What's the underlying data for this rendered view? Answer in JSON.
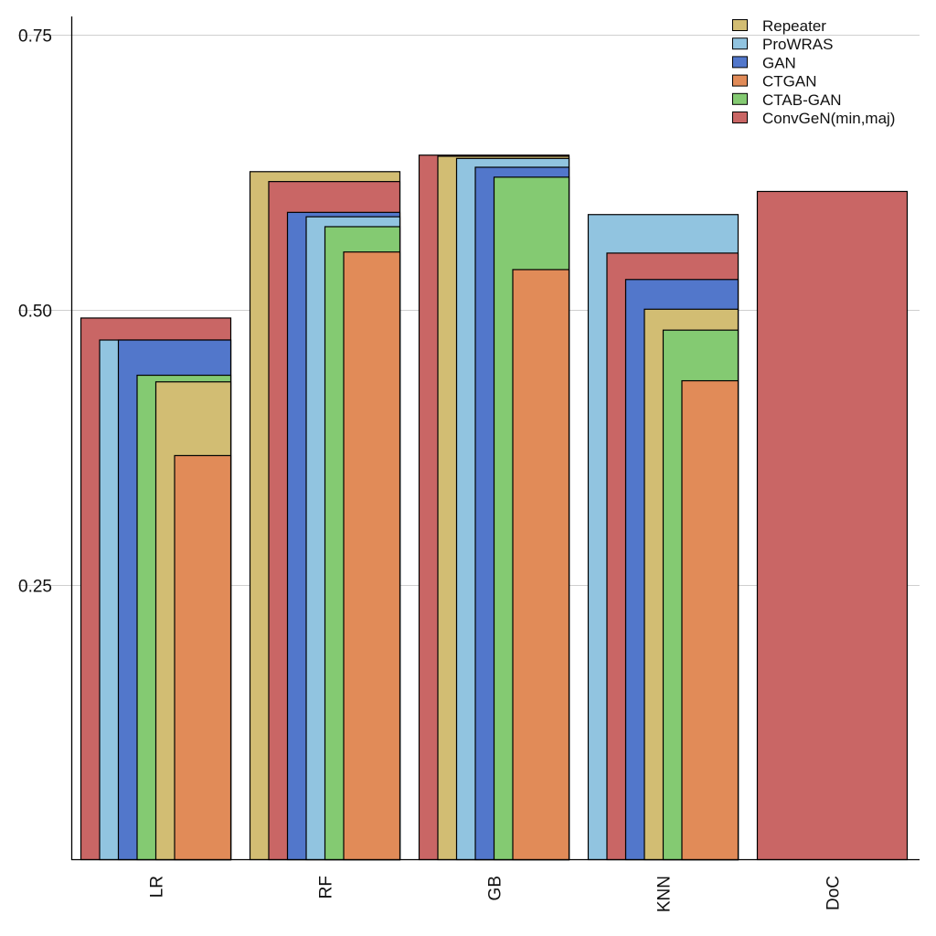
{
  "chart_data": {
    "type": "bar",
    "title": "",
    "xlabel": "",
    "ylabel": "",
    "ylim": [
      0,
      0.78
    ],
    "yticks": [
      "0.25",
      "0.50",
      "0.75"
    ],
    "ytick_values": [
      0.25,
      0.5,
      0.75
    ],
    "grid": "horizontal",
    "legend_position": "top-right",
    "categories": [
      "LR",
      "RF",
      "GB",
      "KNN",
      "DoC"
    ],
    "series": [
      {
        "name": "Repeater",
        "color": "#d2bd73",
        "values": [
          0.435,
          0.626,
          0.64,
          0.501,
          null
        ]
      },
      {
        "name": "ProWRAS",
        "color": "#91c4e0",
        "values": [
          0.473,
          0.585,
          0.638,
          0.587,
          null
        ]
      },
      {
        "name": "GAN",
        "color": "#5277cb",
        "values": [
          0.473,
          0.589,
          0.63,
          0.528,
          null
        ]
      },
      {
        "name": "CTGAN",
        "color": "#e18b58",
        "values": [
          0.368,
          0.553,
          0.537,
          0.436,
          null
        ]
      },
      {
        "name": "CTAB-GAN",
        "color": "#84ca72",
        "values": [
          0.441,
          0.576,
          0.621,
          0.482,
          null
        ]
      },
      {
        "name": "ConvGeN(min,maj)",
        "color": "#c96665",
        "values": [
          0.493,
          0.617,
          0.641,
          0.552,
          0.608
        ]
      }
    ]
  }
}
